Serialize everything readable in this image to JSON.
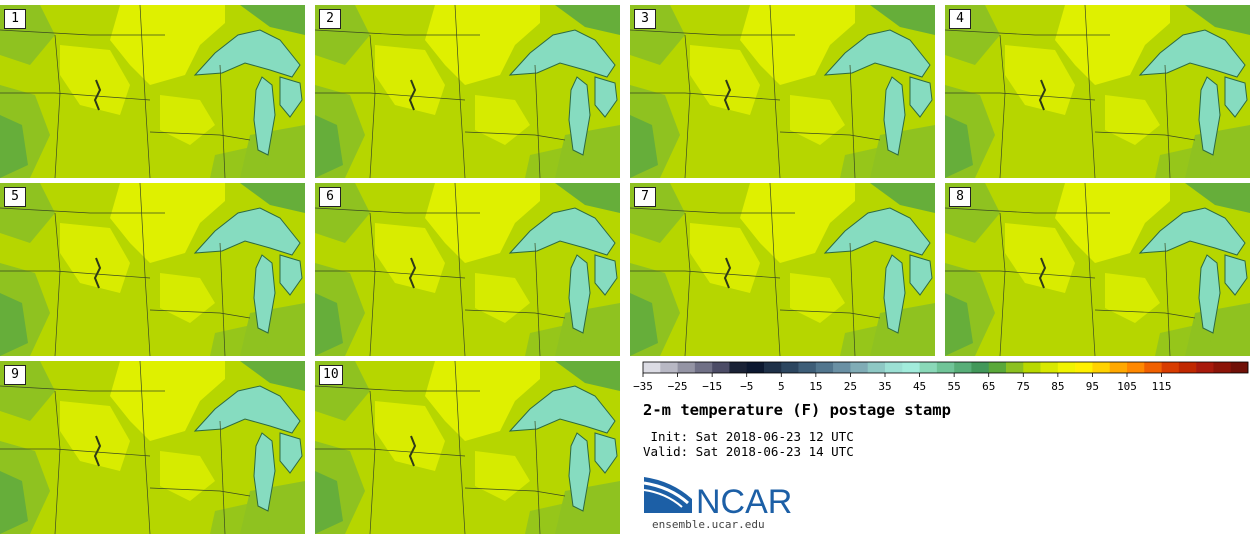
{
  "panels": [
    {
      "label": "1"
    },
    {
      "label": "2"
    },
    {
      "label": "3"
    },
    {
      "label": "4"
    },
    {
      "label": "5"
    },
    {
      "label": "6"
    },
    {
      "label": "7"
    },
    {
      "label": "8"
    },
    {
      "label": "9"
    },
    {
      "label": "10"
    }
  ],
  "colorbar": {
    "colors": [
      "#dcdce4",
      "#b8b8c4",
      "#9494a4",
      "#707086",
      "#4c4c66",
      "#1a2236",
      "#0c1830",
      "#1e3048",
      "#2c4660",
      "#3e5e78",
      "#52768e",
      "#6a90a4",
      "#80acb6",
      "#8ec8c4",
      "#9ce0d4",
      "#a2ecdc",
      "#8ad8b8",
      "#70c498",
      "#58ae78",
      "#42985a",
      "#5aa83a",
      "#8cc020",
      "#b8d800",
      "#d8e800",
      "#f0f400",
      "#fff000",
      "#ffd200",
      "#ffa800",
      "#ff8800",
      "#f06000",
      "#d83c00",
      "#c02800",
      "#a81a0c",
      "#8c1408",
      "#701008"
    ],
    "ticks": [
      "−35",
      "−25",
      "−15",
      "−5",
      "5",
      "15",
      "25",
      "35",
      "45",
      "55",
      "65",
      "75",
      "85",
      "95",
      "105",
      "115"
    ]
  },
  "title": "2-m temperature (F) postage stamp",
  "init": " Init: Sat 2018-06-23 12 UTC",
  "valid": "Valid: Sat 2018-06-23 14 UTC",
  "logo": {
    "text": "NCAR",
    "icon": "ncar-logo-icon",
    "color": "#1c5fa6"
  },
  "website": "ensemble.ucar.edu",
  "map_colors": {
    "base": "#b6d600",
    "warm": "#dff000",
    "cool": "#8fc220",
    "cooler": "#66ae3a",
    "lake": "#86dcc0",
    "lakeEdge": "#2e6a40"
  }
}
